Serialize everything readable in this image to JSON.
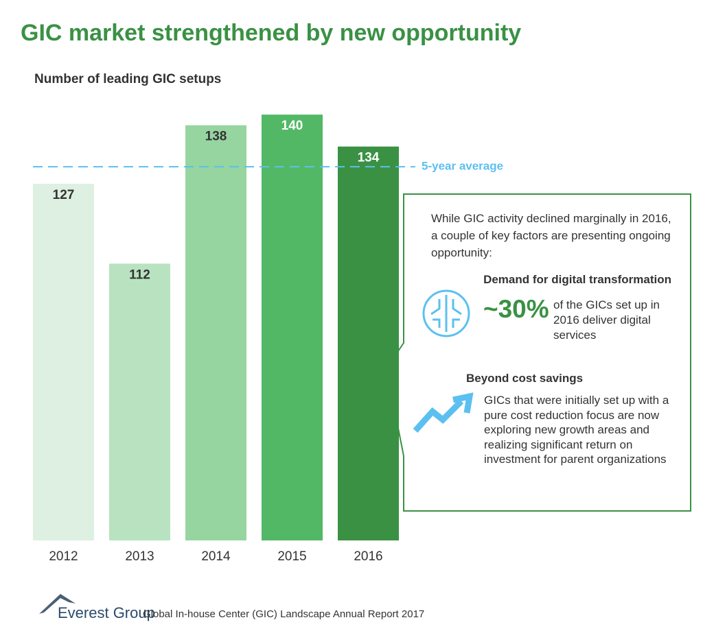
{
  "chart_data": {
    "type": "bar",
    "title": "GIC market strengthened by new opportunity",
    "subtitle": "Number of leading GIC setups",
    "categories": [
      "2012",
      "2013",
      "2014",
      "2015",
      "2016"
    ],
    "values": [
      127,
      112,
      138,
      140,
      134
    ],
    "colors": [
      "#ddf0e2",
      "#b9e3c0",
      "#96d5a0",
      "#52b866",
      "#3a9144"
    ],
    "value_label_colors": [
      "#333333",
      "#333333",
      "#333333",
      "#ffffff",
      "#ffffff"
    ],
    "ylim": [
      60,
      150
    ],
    "average": {
      "value": 130.2,
      "label": "5-year average",
      "color": "#5bc0f0"
    }
  },
  "callout": {
    "intro": "While GIC activity declined marginally in 2016, a couple of key factors are presenting ongoing opportunity:",
    "points": [
      {
        "heading": "Demand for digital transformation",
        "stat": "~30%",
        "text": "of the GICs set up in 2016 deliver digital services"
      },
      {
        "heading": "Beyond cost savings",
        "text": "GICs that were initially set up with a pure cost reduction focus are now exploring new growth areas and realizing significant return on investment for parent organizations"
      }
    ]
  },
  "footer": {
    "brand": "Everest Group",
    "source": "Global In-house Center (GIC) Landscape Annual Report 2017"
  }
}
